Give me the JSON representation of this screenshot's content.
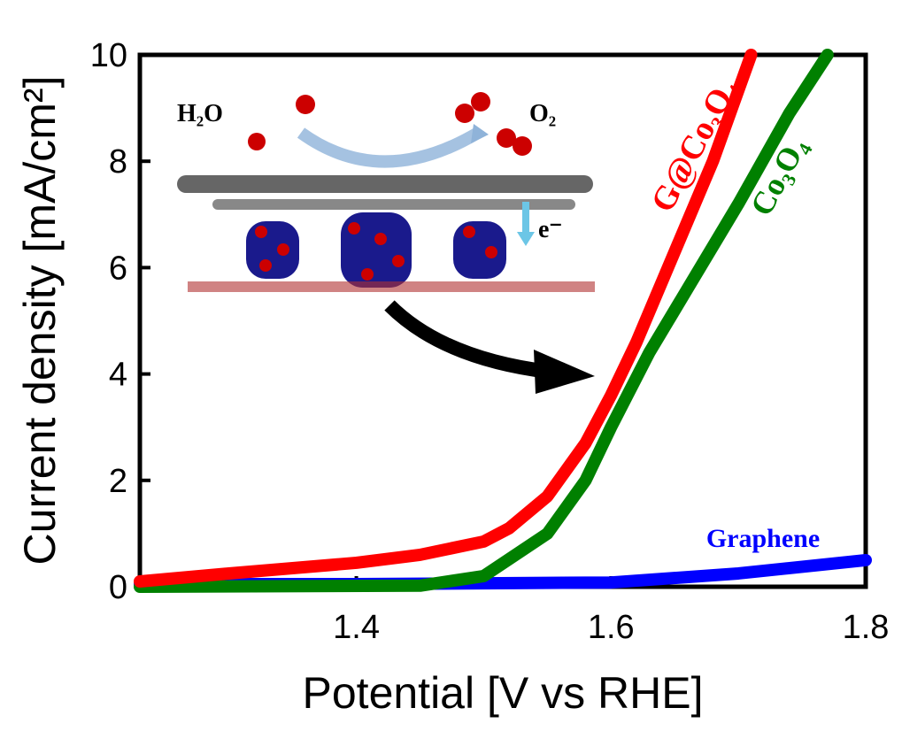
{
  "chart_data": {
    "type": "line",
    "xlabel": "Potential [V vs RHE]",
    "ylabel": "Current density [mA/cm²]",
    "xlim": [
      1.23,
      1.8
    ],
    "ylim": [
      0,
      10
    ],
    "xticks": [
      1.4,
      1.6,
      1.8
    ],
    "yticks": [
      0,
      2,
      4,
      6,
      8,
      10
    ],
    "series": [
      {
        "name": "G@Co₃O₄",
        "color": "#ff0000",
        "x": [
          1.23,
          1.3,
          1.4,
          1.45,
          1.5,
          1.52,
          1.55,
          1.58,
          1.6,
          1.62,
          1.65,
          1.68,
          1.71
        ],
        "values": [
          0.1,
          0.25,
          0.45,
          0.6,
          0.85,
          1.1,
          1.7,
          2.7,
          3.6,
          4.6,
          6.3,
          8.0,
          10
        ]
      },
      {
        "name": "Co₃O₄",
        "color": "#008000",
        "x": [
          1.23,
          1.45,
          1.5,
          1.55,
          1.58,
          1.6,
          1.63,
          1.66,
          1.7,
          1.74,
          1.77
        ],
        "values": [
          0.0,
          0.02,
          0.2,
          1.0,
          2.0,
          3.0,
          4.4,
          5.6,
          7.2,
          8.9,
          10
        ]
      },
      {
        "name": "Graphene",
        "color": "#0000ff",
        "x": [
          1.23,
          1.4,
          1.6,
          1.7,
          1.8
        ],
        "values": [
          0.05,
          0.05,
          0.08,
          0.25,
          0.5
        ]
      }
    ],
    "inset_labels": [
      "H₂O",
      "O₂",
      "e⁻"
    ]
  }
}
